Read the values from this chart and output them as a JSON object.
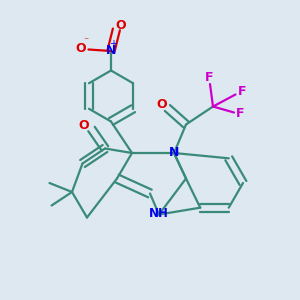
{
  "bg_color": "#dde8f0",
  "bond_color": "#3a8a7a",
  "bond_lw": 1.6,
  "N_color": "#0000ee",
  "O_color": "#dd0000",
  "F_color": "#cc00cc",
  "figsize": [
    3.0,
    3.0
  ],
  "dpi": 100,
  "xlim": [
    0.0,
    1.0
  ],
  "ylim": [
    0.0,
    1.0
  ]
}
